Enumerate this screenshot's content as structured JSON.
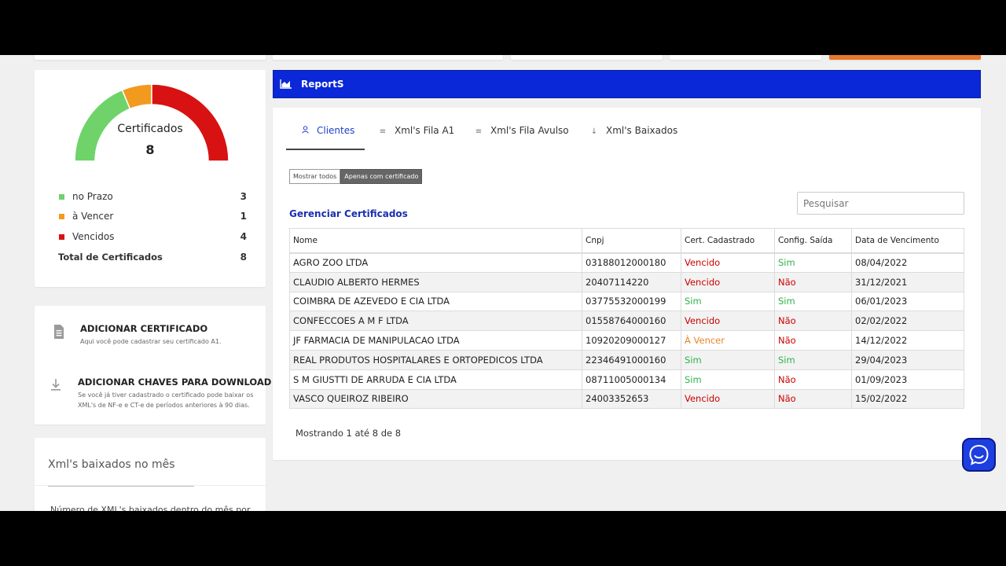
{
  "certificates_widget": {
    "title": "Certificados",
    "total": "8",
    "legend": [
      {
        "label": "no Prazo",
        "value": "3",
        "color": "#6fd36a"
      },
      {
        "label": "à Vencer",
        "value": "1",
        "color": "#f29a1e"
      },
      {
        "label": "Vencidos",
        "value": "4",
        "color": "#d81212"
      }
    ],
    "total_label": "Total de Certificados",
    "total_value": "8"
  },
  "actions": {
    "add_certificate": {
      "title": "ADICIONAR CERTIFICADO",
      "description": "Aqui você pode cadastrar seu certificado A1.",
      "icon": "document-icon"
    },
    "add_keys": {
      "title": "ADICIONAR CHAVES PARA DOWNLOAD",
      "description": "Se você já tiver cadastrado o certificado pode baixar os XML's de NF-e e CT-e de períodos anteriores à 90 dias.",
      "icon": "download-icon"
    }
  },
  "xml_widget": {
    "title": "Xml's baixados no mês",
    "description": "Número de XML's baixados dentro do mês por"
  },
  "reports_bar": {
    "title": "ReportS",
    "color": "#0a28d8"
  },
  "tabs": [
    {
      "label": "Clientes",
      "icon": "user-icon",
      "active": true
    },
    {
      "label": "Xml's Fila A1",
      "icon": "list-icon",
      "active": false
    },
    {
      "label": "Xml's Fila Avulso",
      "icon": "list-icon",
      "active": false
    },
    {
      "label": "Xml's Baixados",
      "icon": "arrow-down-icon",
      "active": false
    }
  ],
  "filter": {
    "show_all": "Mostrar todos",
    "only_with_cert": "Apenas com certificado",
    "selected": "Apenas com certificado"
  },
  "search": {
    "placeholder": "Pesquisar",
    "value": ""
  },
  "manage_title": "Gerenciar Certificados",
  "table": {
    "columns": [
      "Nome",
      "Cnpj",
      "Cert. Cadastrado",
      "Config. Saída",
      "Data de Vencimento"
    ],
    "rows": [
      [
        "AGRO ZOO LTDA",
        "03188012000180",
        "Vencido",
        "Sim",
        "08/04/2022"
      ],
      [
        "CLAUDIO ALBERTO HERMES",
        "20407114220",
        "Vencido",
        "Não",
        "31/12/2021"
      ],
      [
        "COIMBRA DE AZEVEDO E CIA LTDA",
        "03775532000199",
        "Sim",
        "Sim",
        "06/01/2023"
      ],
      [
        "CONFECCOES A M F LTDA",
        "01558764000160",
        "Vencido",
        "Não",
        "02/02/2022"
      ],
      [
        "JF FARMACIA DE MANIPULACAO LTDA",
        "10920209000127",
        "À Vencer",
        "Não",
        "14/12/2022"
      ],
      [
        "REAL PRODUTOS HOSPITALARES E ORTOPEDICOS LTDA",
        "22346491000160",
        "Sim",
        "Sim",
        "29/04/2023"
      ],
      [
        "S M GIUSTTI DE ARRUDA E CIA LTDA",
        "08711005000134",
        "Sim",
        "Não",
        "01/09/2023"
      ],
      [
        "VASCO QUEIROZ RIBEIRO",
        "24003352653",
        "Vencido",
        "Não",
        "15/02/2022"
      ]
    ]
  },
  "pagination_info": "Mostrando 1 até 8 de 8",
  "chat_button": {
    "icon": "chat-icon",
    "color": "#1d3fe0"
  }
}
